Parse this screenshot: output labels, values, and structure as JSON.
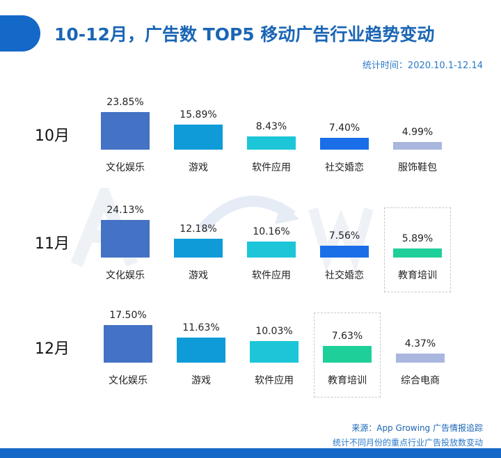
{
  "header": {
    "title": "10-12月，广告数 TOP5 移动广告行业趋势变动",
    "period": "统计时间：2020.10.1-12.14"
  },
  "watermark": "AppGrowing",
  "colors": {
    "文化娱乐": "#4472c4",
    "游戏": "#0e9bd8",
    "软件应用": "#1cc6d8",
    "社交婚恋": "#1a6ee8",
    "服饰鞋包": "#a9b6de",
    "教育培训": "#1fcf9a",
    "综合电商": "#a9b6de"
  },
  "chart_data": {
    "type": "bar",
    "unit": "%",
    "groups": [
      {
        "month": "10月",
        "categories": [
          "文化娱乐",
          "游戏",
          "软件应用",
          "社交婚恋",
          "服饰鞋包"
        ],
        "values": [
          23.85,
          15.89,
          8.43,
          7.4,
          4.99
        ],
        "labels": [
          "23.85%",
          "15.89%",
          "8.43%",
          "7.40%",
          "4.99%"
        ],
        "highlight": -1
      },
      {
        "month": "11月",
        "categories": [
          "文化娱乐",
          "游戏",
          "软件应用",
          "社交婚恋",
          "教育培训"
        ],
        "values": [
          24.13,
          12.18,
          10.16,
          7.56,
          5.89
        ],
        "labels": [
          "24.13%",
          "12.18%",
          "10.16%",
          "7.56%",
          "5.89%"
        ],
        "highlight": 4
      },
      {
        "month": "12月",
        "categories": [
          "文化娱乐",
          "游戏",
          "软件应用",
          "教育培训",
          "综合电商"
        ],
        "values": [
          17.5,
          11.63,
          10.03,
          7.63,
          4.37
        ],
        "labels": [
          "17.50%",
          "11.63%",
          "10.03%",
          "7.63%",
          "4.37%"
        ],
        "highlight": 3
      }
    ]
  },
  "footer": {
    "source": "来源：App Growing 广告情报追踪",
    "note": "统计不同月份的重点行业广告投放数变动"
  }
}
